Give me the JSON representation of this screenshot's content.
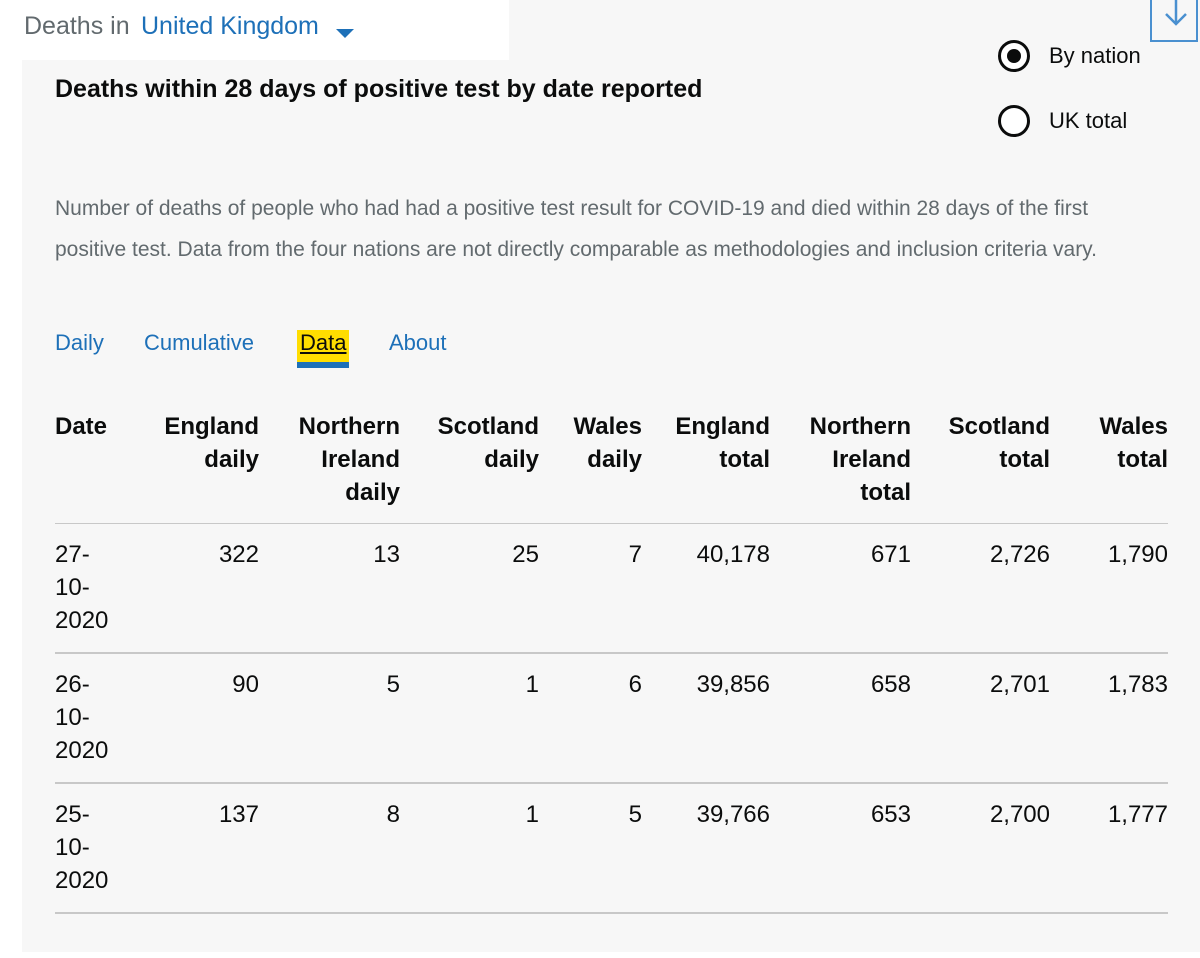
{
  "area_selector": {
    "label": "Deaths in",
    "value": "United Kingdom"
  },
  "title": "Deaths within 28 days of positive test by date reported",
  "view_options": [
    {
      "label": "By nation",
      "selected": true
    },
    {
      "label": "UK total",
      "selected": false
    }
  ],
  "description": "Number of deaths of people who had had a positive test result for COVID-19 and died within 28 days of the first positive test. Data from the four nations are not directly comparable as methodologies and inclusion criteria vary.",
  "tabs": [
    {
      "label": "Daily",
      "active": false
    },
    {
      "label": "Cumulative",
      "active": false
    },
    {
      "label": "Data",
      "active": true
    },
    {
      "label": "About",
      "active": false
    }
  ],
  "table": {
    "headers": [
      [
        "Date"
      ],
      [
        "England",
        "daily"
      ],
      [
        "Northern",
        "Ireland",
        "daily"
      ],
      [
        "Scotland",
        "daily"
      ],
      [
        "Wales",
        "daily"
      ],
      [
        "England",
        "total"
      ],
      [
        "Northern",
        "Ireland",
        "total"
      ],
      [
        "Scotland",
        "total"
      ],
      [
        "Wales",
        "total"
      ]
    ],
    "rows": [
      {
        "date": [
          "27-",
          "10-",
          "2020"
        ],
        "values": [
          "322",
          "13",
          "25",
          "7",
          "40,178",
          "671",
          "2,726",
          "1,790"
        ]
      },
      {
        "date": [
          "26-",
          "10-",
          "2020"
        ],
        "values": [
          "90",
          "5",
          "1",
          "6",
          "39,856",
          "658",
          "2,701",
          "1,783"
        ]
      },
      {
        "date": [
          "25-",
          "10-",
          "2020"
        ],
        "values": [
          "137",
          "8",
          "1",
          "5",
          "39,766",
          "653",
          "2,700",
          "1,777"
        ]
      }
    ]
  },
  "colors": {
    "link": "#1d70b8",
    "focus": "#ffdd00",
    "text": "#0b0c0c",
    "secondary_text": "#626a6e",
    "panel_background": "#f7f7f7"
  },
  "icons": {
    "download": "download-icon",
    "dropdown": "caret-down-icon"
  }
}
